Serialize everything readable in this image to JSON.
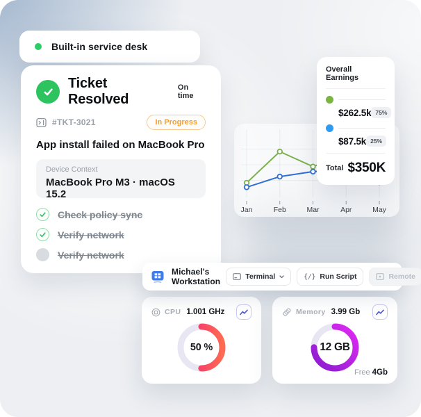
{
  "colors": {
    "green_accent": "#2dc35f",
    "badge_orange": "#f59e2e",
    "pill_dot_green": "#2ecc66"
  },
  "feature_pill": {
    "label": "Built-in service desk"
  },
  "ticket_card": {
    "title": "Ticket Resolved",
    "timing_label": "On time",
    "ticket_id": "#TKT-3021",
    "status_badge": "In Progress",
    "issue_title": "App install failed on MacBook Pro",
    "device_context": {
      "label": "Device Context",
      "value": "MacBook Pro M3 · macOS 15.2"
    },
    "checklist": [
      {
        "label": "Check policy sync",
        "state": "done"
      },
      {
        "label": "Verify network",
        "state": "done"
      },
      {
        "label": "Verify network",
        "state": "pending"
      }
    ]
  },
  "earnings_card": {
    "title": "Overall Earnings",
    "rows": [
      {
        "value": "$262.5k",
        "percent": "75%",
        "color": "#7cb342"
      },
      {
        "value": "$87.5k",
        "percent": "25%",
        "color": "#2d9cf4"
      }
    ],
    "total_label": "Total",
    "total_value": "$350K"
  },
  "chart_data": {
    "type": "line",
    "title": "",
    "x": [
      "Jan",
      "Feb",
      "Mar",
      "Apr",
      "May"
    ],
    "series": [
      {
        "name": "green",
        "color": "#7cb24e",
        "values": [
          21,
          71,
          47,
          65,
          36
        ]
      },
      {
        "name": "blue",
        "color": "#2f6fd6",
        "values": [
          14,
          31,
          39,
          42,
          22
        ]
      }
    ],
    "ylim": [
      0,
      100
    ],
    "grid": true,
    "legend": "none",
    "xlabel": "",
    "ylabel": ""
  },
  "workstation_bar": {
    "title": "Michael's Workstation",
    "terminal_button": "Terminal",
    "run_script_button": "Run Script",
    "run_script_glyph": "{/}",
    "remote_button": "Remote"
  },
  "cpu_card": {
    "label": "CPU",
    "value": "1.001 GHz",
    "percent": 50,
    "center_label": "50 %",
    "gradient": [
      "#ee2277",
      "#ff6a52"
    ],
    "track": "#e8e6f2"
  },
  "memory_card": {
    "label": "Memory",
    "value": "3.99 Gb",
    "percent": 75,
    "center_label": "12 GB",
    "free_label": "Free",
    "free_value": "4Gb",
    "gradient": [
      "#8a1bd0",
      "#df2bf2"
    ],
    "track": "#e8e6f2"
  }
}
